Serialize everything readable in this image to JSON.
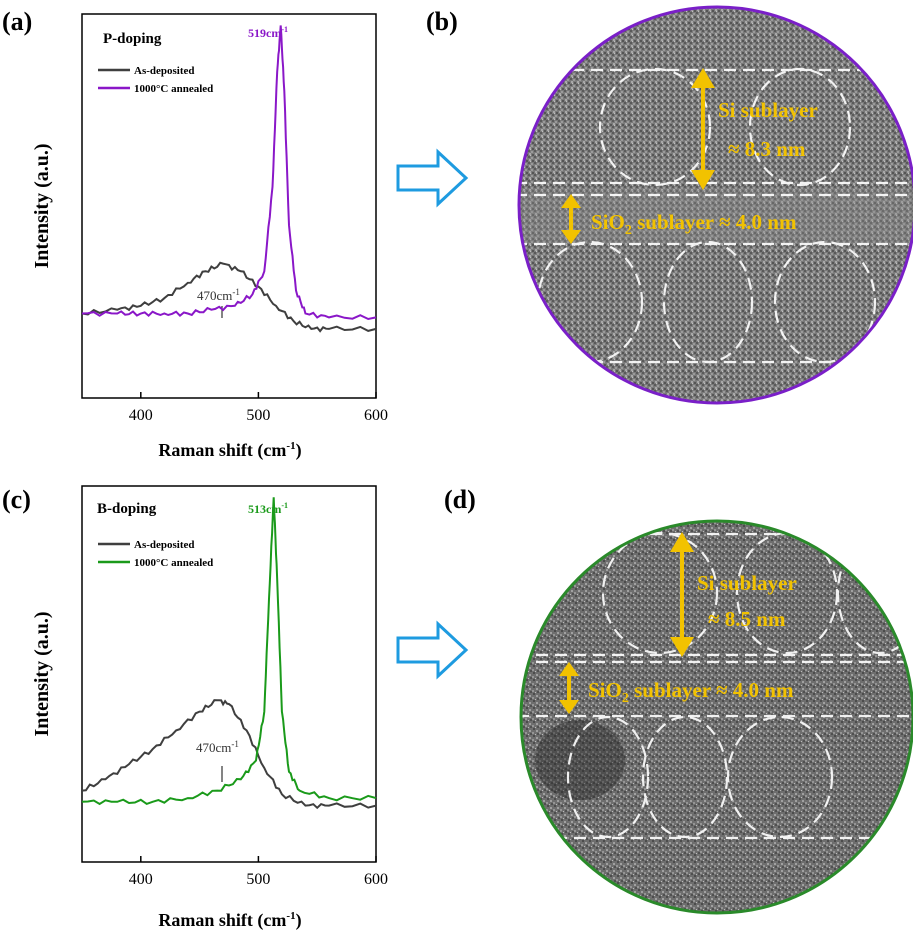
{
  "panels": {
    "a": {
      "label": "(a)",
      "title": "P-doping",
      "ylabel": "Intensity (a.u.)",
      "xlabel": "Raman shift (cm",
      "xlabel_sup": "-1",
      "xlabel_end": ")",
      "legend": [
        "As-deposited",
        "1000°C annealed"
      ],
      "peak_anneal": "519cm",
      "peak_anneal_sup": "-1",
      "peak_dep": "470cm",
      "peak_dep_sup": "-1"
    },
    "b": {
      "label": "(b)",
      "si_line1": "Si sublayer",
      "si_line2": "≈ 8.3 nm",
      "ox_pre": "SiO",
      "ox_sub": "2",
      "ox_post": " sublayer ≈ 4.0 nm"
    },
    "c": {
      "label": "(c)",
      "title": "B-doping",
      "ylabel": "Intensity (a.u.)",
      "xlabel": "Raman shift (cm",
      "xlabel_sup": "-1",
      "xlabel_end": ")",
      "legend": [
        "As-deposited",
        "1000°C annealed"
      ],
      "peak_anneal": "513cm",
      "peak_anneal_sup": "-1",
      "peak_dep": "470cm",
      "peak_dep_sup": "-1"
    },
    "d": {
      "label": "(d)",
      "si_line1": "Si sublayer",
      "si_line2": "≈ 8.5 nm",
      "ox_pre": "SiO",
      "ox_sub": "2",
      "ox_post": " sublayer ≈ 4.0 nm"
    }
  },
  "colors": {
    "as_deposited": "#3f3f3f",
    "p_annealed": "#8a17c8",
    "b_annealed": "#1a9a1a",
    "annotation": "#f2c200",
    "arrow": "#1e9be0",
    "b_ring": "#7a1fc8",
    "d_ring": "#2a8a2a"
  },
  "chart_data": [
    {
      "type": "line",
      "title": "P-doping",
      "xlabel": "Raman shift (cm-1)",
      "ylabel": "Intensity (a.u.)",
      "xlim": [
        350,
        600
      ],
      "xticks": [
        400,
        500,
        600
      ],
      "ylim": [
        0,
        1
      ],
      "series": [
        {
          "name": "As-deposited",
          "x": [
            350,
            380,
            400,
            420,
            440,
            455,
            470,
            485,
            500,
            515,
            530,
            545,
            560,
            600
          ],
          "y": [
            0.22,
            0.23,
            0.24,
            0.26,
            0.3,
            0.33,
            0.35,
            0.33,
            0.29,
            0.24,
            0.2,
            0.18,
            0.18,
            0.18
          ]
        },
        {
          "name": "1000°C annealed",
          "x": [
            350,
            380,
            400,
            420,
            440,
            460,
            480,
            495,
            505,
            512,
            516,
            519,
            522,
            526,
            532,
            540,
            560,
            600
          ],
          "y": [
            0.22,
            0.22,
            0.22,
            0.22,
            0.22,
            0.23,
            0.24,
            0.27,
            0.33,
            0.55,
            0.85,
            0.97,
            0.8,
            0.45,
            0.28,
            0.22,
            0.21,
            0.21
          ]
        }
      ],
      "annotations": [
        "519cm-1",
        "470cm-1"
      ]
    },
    {
      "type": "line",
      "title": "B-doping",
      "xlabel": "Raman shift (cm-1)",
      "ylabel": "Intensity (a.u.)",
      "xlim": [
        350,
        600
      ],
      "xticks": [
        400,
        500,
        600
      ],
      "ylim": [
        0,
        1
      ],
      "series": [
        {
          "name": "As-deposited",
          "x": [
            350,
            370,
            390,
            410,
            430,
            450,
            465,
            475,
            490,
            505,
            520,
            540,
            560,
            600
          ],
          "y": [
            0.19,
            0.22,
            0.26,
            0.3,
            0.35,
            0.4,
            0.43,
            0.42,
            0.35,
            0.25,
            0.18,
            0.15,
            0.15,
            0.15
          ]
        },
        {
          "name": "1000°C annealed",
          "x": [
            350,
            380,
            410,
            440,
            465,
            485,
            498,
            505,
            509,
            513,
            516,
            520,
            526,
            535,
            560,
            600
          ],
          "y": [
            0.16,
            0.16,
            0.16,
            0.17,
            0.19,
            0.22,
            0.27,
            0.4,
            0.7,
            0.97,
            0.75,
            0.4,
            0.24,
            0.19,
            0.17,
            0.17
          ]
        }
      ],
      "annotations": [
        "513cm-1",
        "470cm-1"
      ]
    }
  ]
}
